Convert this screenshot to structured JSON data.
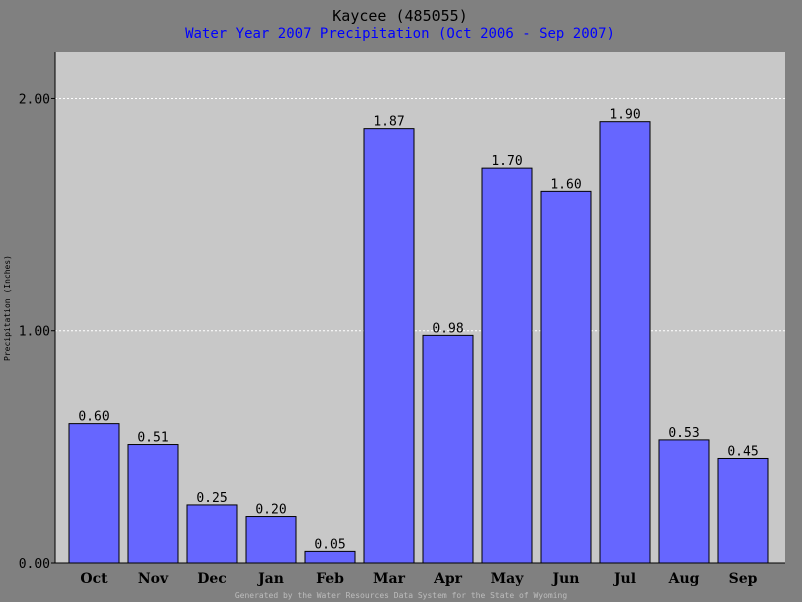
{
  "colors": {
    "background": "#808080",
    "plot_background": "#c8c8c8",
    "bar_fill": "#6666ff",
    "bar_stroke": "#000000",
    "subtitle": "#0000ff",
    "grid": "#ffffff"
  },
  "footer": "Generated by the Water Resources Data System for the State of Wyoming",
  "chart_data": {
    "type": "bar",
    "title": "Kaycee (485055)",
    "subtitle": "Water Year 2007 Precipitation (Oct 2006 - Sep 2007)",
    "xlabel": "",
    "ylabel": "Precipitation (Inches)",
    "ylim": [
      0,
      2.2
    ],
    "yticks": [
      0,
      1,
      2
    ],
    "ytick_labels": [
      "0.00",
      "1.00",
      "2.00"
    ],
    "grid": true,
    "categories": [
      "Oct",
      "Nov",
      "Dec",
      "Jan",
      "Feb",
      "Mar",
      "Apr",
      "May",
      "Jun",
      "Jul",
      "Aug",
      "Sep"
    ],
    "values": [
      0.6,
      0.51,
      0.25,
      0.2,
      0.05,
      1.87,
      0.98,
      1.7,
      1.6,
      1.9,
      0.53,
      0.45
    ],
    "value_labels": [
      "0.60",
      "0.51",
      "0.25",
      "0.20",
      "0.05",
      "1.87",
      "0.98",
      "1.70",
      "1.60",
      "1.90",
      "0.53",
      "0.45"
    ]
  }
}
